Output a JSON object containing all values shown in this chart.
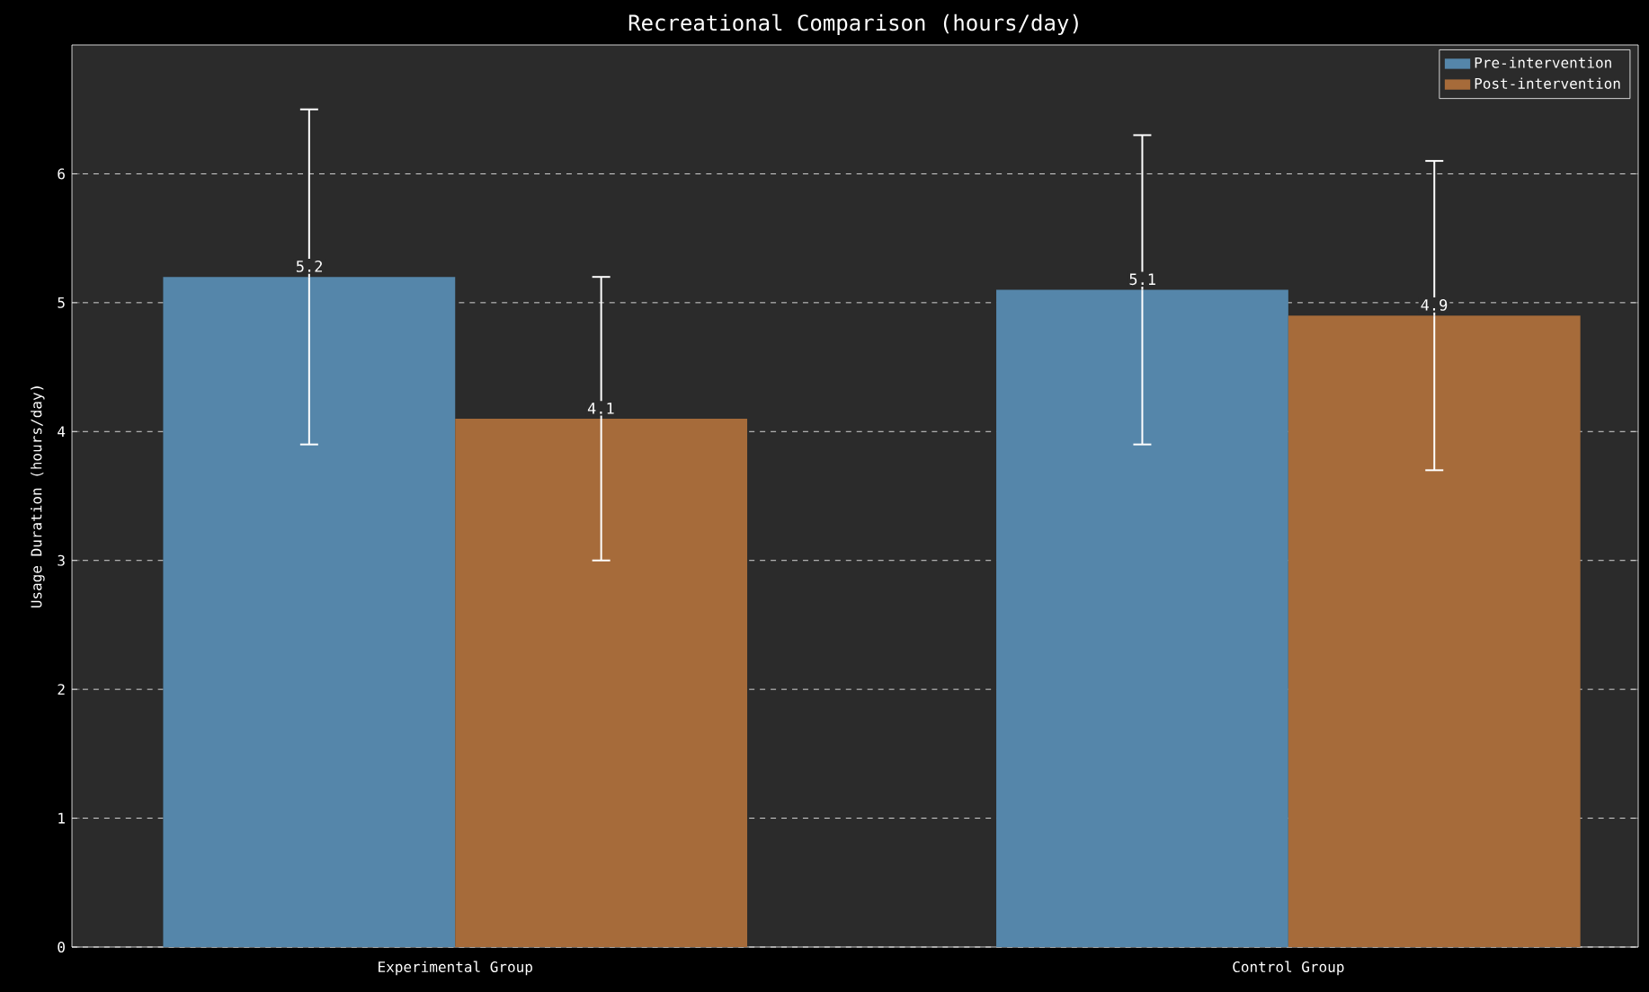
{
  "chart_data": {
    "type": "bar",
    "title": "Recreational Comparison (hours/day)",
    "ylabel": "Usage Duration (hours/day)",
    "categories": [
      "Experimental Group",
      "Control Group"
    ],
    "series": [
      {
        "name": "Pre-intervention",
        "color": "#5586aa",
        "values": [
          5.2,
          5.1
        ],
        "errors": [
          1.3,
          1.2
        ]
      },
      {
        "name": "Post-intervention",
        "color": "#a66b3a",
        "values": [
          4.1,
          4.9
        ],
        "errors": [
          1.1,
          1.2
        ]
      }
    ],
    "ylim": [
      0,
      7.0
    ],
    "yticks": [
      0,
      1,
      2,
      3,
      4,
      5,
      6
    ],
    "grid": "y",
    "legend": "top right",
    "data_labels": true
  }
}
